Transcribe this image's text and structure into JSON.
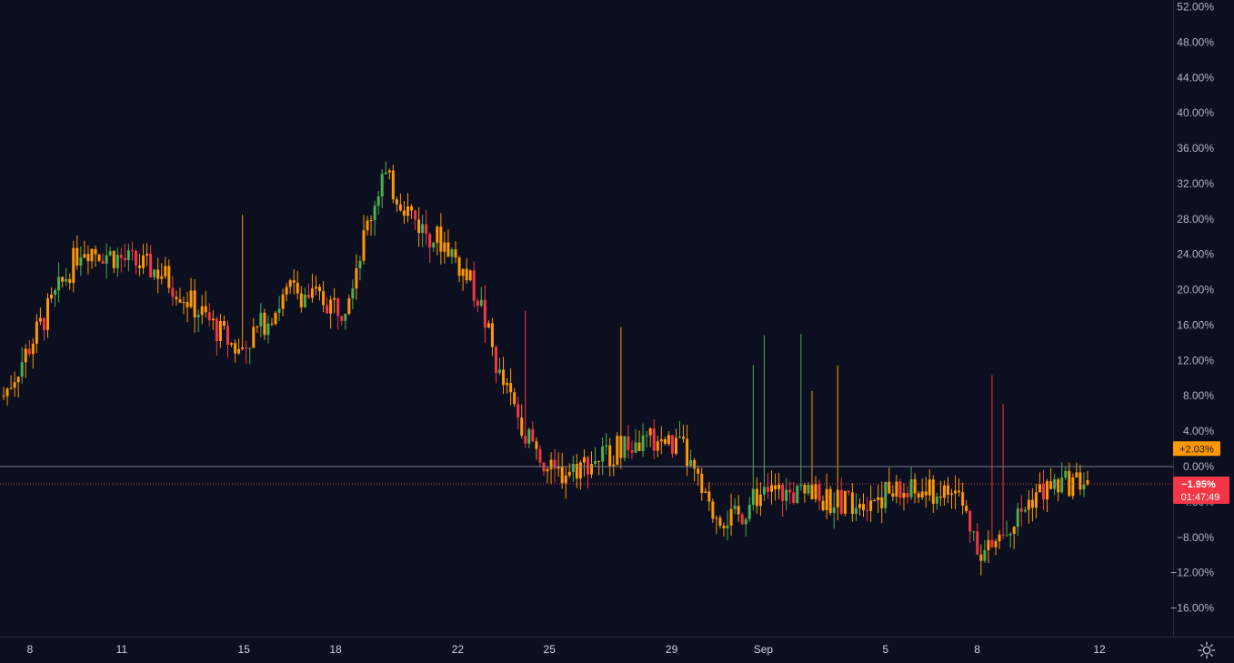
{
  "chart_data": {
    "type": "candlestick",
    "y_unit": "%",
    "ylim": [
      -19.5,
      53.5
    ],
    "y_ticks": [
      "52.00%",
      "48.00%",
      "44.00%",
      "40.00%",
      "36.00%",
      "32.00%",
      "28.00%",
      "24.00%",
      "20.00%",
      "16.00%",
      "12.00%",
      "8.00%",
      "4.00%",
      "0.00%",
      "−4.00%",
      "−8.00%",
      "−12.00%",
      "−16.00%"
    ],
    "x_ticks": [
      "8",
      "11",
      "15",
      "18",
      "22",
      "25",
      "29",
      "Sep",
      "5",
      "8",
      "12"
    ],
    "zero_line": 0,
    "series": [
      {
        "color_up": "#4caf50",
        "color_down": "#f23645",
        "color_alt": "#ff9800",
        "approx_path": [
          [
            0,
            8
          ],
          [
            3,
            25
          ],
          [
            6,
            22
          ],
          [
            9,
            13
          ],
          [
            11,
            20
          ],
          [
            13,
            18
          ],
          [
            14.5,
            33
          ],
          [
            16,
            27
          ],
          [
            17,
            25
          ],
          [
            18.2,
            19
          ],
          [
            19,
            10
          ],
          [
            20,
            4
          ],
          [
            21,
            -1
          ],
          [
            22,
            0
          ],
          [
            23.5,
            2
          ],
          [
            25,
            3
          ],
          [
            26,
            2
          ],
          [
            27,
            -5
          ],
          [
            28,
            -6
          ],
          [
            29,
            -3
          ],
          [
            30,
            -3
          ],
          [
            32,
            -4
          ],
          [
            34,
            -3
          ],
          [
            35,
            -3
          ],
          [
            36.5,
            -3
          ],
          [
            37.5,
            -10
          ],
          [
            38.5,
            -7
          ],
          [
            39.5,
            -3
          ],
          [
            40.5,
            -2
          ],
          [
            41.5,
            -1.5
          ]
        ]
      },
      {
        "name": "",
        "line_style": "dotted",
        "color": "#f23645",
        "value": -1.95
      }
    ],
    "price_labels": [
      {
        "text": "+2.03%",
        "value": 2.03,
        "color": "#ff9800"
      },
      {
        "text": "−1.95%",
        "value": -1.95,
        "color": "#f23645",
        "countdown": "01:47:49"
      }
    ]
  },
  "settings_icon": "gear-icon"
}
